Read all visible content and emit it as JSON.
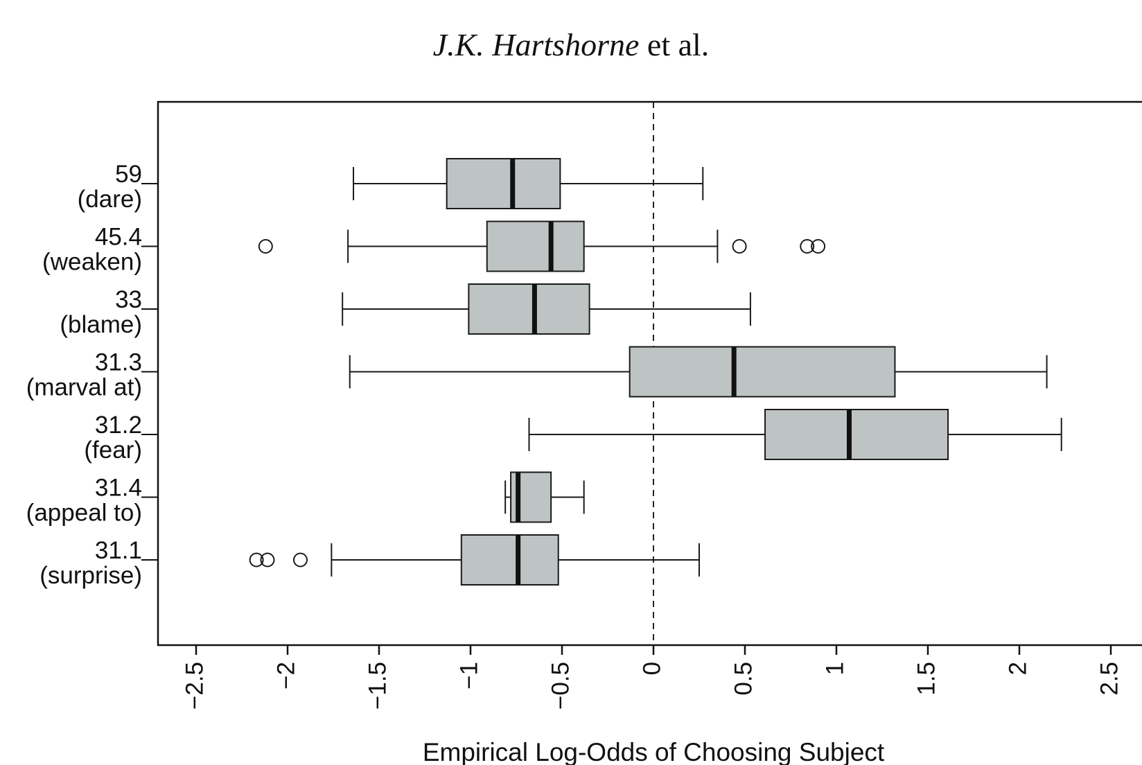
{
  "header": {
    "authors": "J.K. Hartshorne",
    "etal": "et al."
  },
  "chart_data": {
    "type": "boxplot",
    "orientation": "horizontal",
    "xlabel": "Empirical Log-Odds of Choosing Subject",
    "xticks": [
      -2.5,
      -2,
      -1.5,
      -1,
      -0.5,
      0,
      0.5,
      1,
      1.5,
      2,
      2.5
    ],
    "xtick_labels": [
      "−2.5",
      "−2",
      "−1.5",
      "−1",
      "−0.5",
      "0",
      "0.5",
      "1",
      "1.5",
      "2",
      "2.5"
    ],
    "xlim": [
      -2.7,
      2.65
    ],
    "reference_line": 0,
    "colors": {
      "box_fill": "#bec3c3",
      "stroke": "#1a1a1a"
    },
    "series": [
      {
        "name": "59",
        "sublabel": "(dare)",
        "whisker_low": -1.64,
        "q1": -1.13,
        "median": -0.77,
        "q3": -0.51,
        "whisker_high": 0.27,
        "outliers": []
      },
      {
        "name": "45.4",
        "sublabel": "(weaken)",
        "whisker_low": -1.67,
        "q1": -0.91,
        "median": -0.56,
        "q3": -0.38,
        "whisker_high": 0.35,
        "outliers": [
          -2.12,
          0.47,
          0.84,
          0.9
        ]
      },
      {
        "name": "33",
        "sublabel": "(blame)",
        "whisker_low": -1.7,
        "q1": -1.01,
        "median": -0.65,
        "q3": -0.35,
        "whisker_high": 0.53,
        "outliers": []
      },
      {
        "name": "31.3",
        "sublabel": "(marval at)",
        "whisker_low": -1.66,
        "q1": -0.13,
        "median": 0.44,
        "q3": 1.32,
        "whisker_high": 2.15,
        "outliers": []
      },
      {
        "name": "31.2",
        "sublabel": "(fear)",
        "whisker_low": -0.68,
        "q1": 0.61,
        "median": 1.07,
        "q3": 1.61,
        "whisker_high": 2.23,
        "outliers": []
      },
      {
        "name": "31.4",
        "sublabel": "(appeal to)",
        "whisker_low": -0.81,
        "q1": -0.78,
        "median": -0.74,
        "q3": -0.56,
        "whisker_high": -0.38,
        "outliers": []
      },
      {
        "name": "31.1",
        "sublabel": "(surprise)",
        "whisker_low": -1.76,
        "q1": -1.05,
        "median": -0.74,
        "q3": -0.52,
        "whisker_high": 0.25,
        "outliers": [
          -2.17,
          -2.11,
          -1.93
        ]
      }
    ]
  }
}
